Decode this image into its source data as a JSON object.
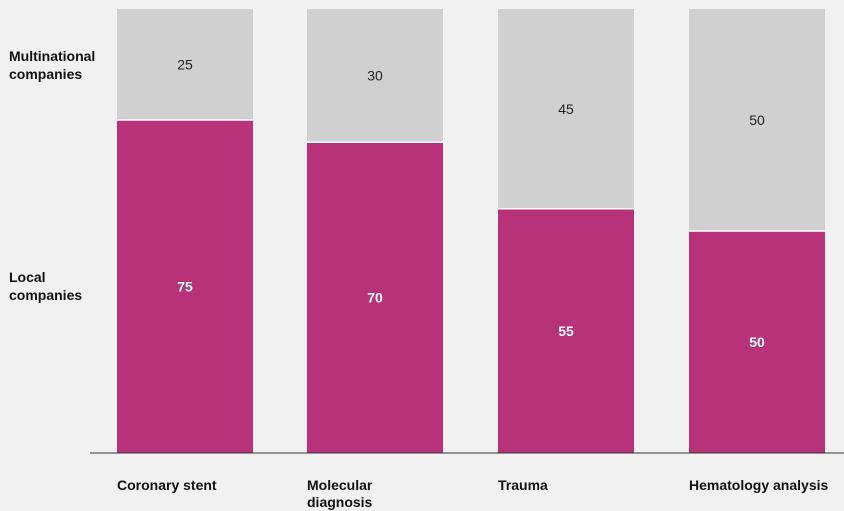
{
  "chart_data": {
    "type": "bar",
    "stacked": true,
    "categories": [
      "Coronary stent",
      "Molecular diagnosis",
      "Trauma",
      "Hematology analysis"
    ],
    "category_lines": [
      [
        "Coronary stent"
      ],
      [
        "Molecular",
        "diagnosis"
      ],
      [
        "Trauma"
      ],
      [
        "Hematology analysis"
      ]
    ],
    "series": [
      {
        "name": "Local companies",
        "name_lines": [
          "Local",
          "companies"
        ],
        "values": [
          75,
          70,
          55,
          50
        ],
        "color": "#b8327a"
      },
      {
        "name": "Multinational companies",
        "name_lines": [
          "Multinational",
          "companies"
        ],
        "values": [
          25,
          30,
          45,
          50
        ],
        "color": "#d0d0d0"
      }
    ],
    "ylim": [
      0,
      100
    ],
    "xlabel": "",
    "ylabel": "",
    "grid": false,
    "legend_placement": "left"
  }
}
